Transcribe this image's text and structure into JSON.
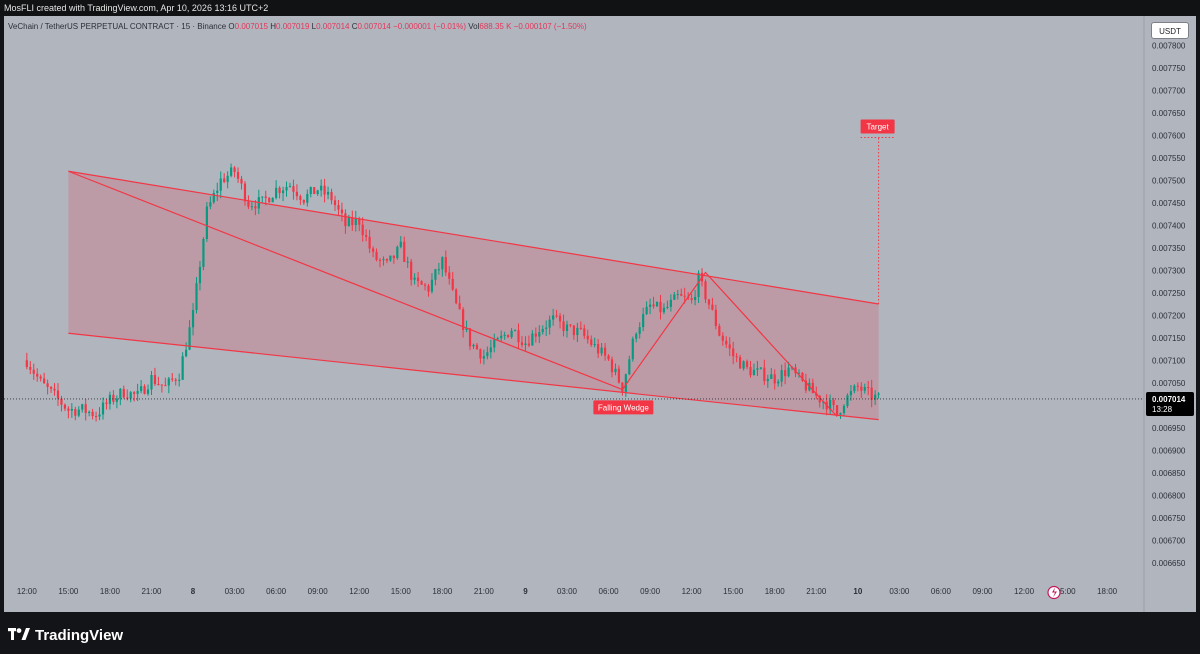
{
  "header": {
    "attribution": "MosFLI created with TradingView.com, Apr 10, 2026 13:16 UTC+2"
  },
  "legend": {
    "symbol": "VeChain / TetherUS PERPETUAL CONTRACT · 15 · Binance",
    "o_label": "O",
    "o": "0.007015",
    "h_label": "H",
    "h": "0.007019",
    "l_label": "L",
    "l": "0.007014",
    "c_label": "C",
    "c": "0.007014",
    "change": "−0.000001 (−0.01%)",
    "vol_label": "Vol",
    "vol": "688.35 K",
    "vol_change": "−0.000107 (−1.50%)"
  },
  "currency_button": "USDT",
  "footer": {
    "logo_text": "TradingView"
  },
  "colors": {
    "up": "#089981",
    "down": "#f23645",
    "pattern": "#f23645",
    "pattern_fill": "#f2364533",
    "background": "#b1b5be",
    "price_label_bg": "#000000"
  },
  "chart_data": {
    "type": "candlestick",
    "symbol": "VeChain / TetherUS PERPETUAL CONTRACT",
    "interval": "15",
    "exchange": "Binance",
    "y_ticks": [
      "0.007800",
      "0.007750",
      "0.007700",
      "0.007650",
      "0.007600",
      "0.007550",
      "0.007500",
      "0.007450",
      "0.007400",
      "0.007350",
      "0.007300",
      "0.007250",
      "0.007200",
      "0.007150",
      "0.007100",
      "0.007050",
      "0.007000",
      "0.006950",
      "0.006900",
      "0.006850",
      "0.006800",
      "0.006750",
      "0.006700",
      "0.006650"
    ],
    "ylim": [
      0.006625,
      0.007825
    ],
    "x_ticks": [
      "12:00",
      "15:00",
      "18:00",
      "21:00",
      "8",
      "03:00",
      "06:00",
      "09:00",
      "12:00",
      "15:00",
      "18:00",
      "21:00",
      "9",
      "03:00",
      "06:00",
      "09:00",
      "12:00",
      "15:00",
      "18:00",
      "21:00",
      "10",
      "03:00",
      "06:00",
      "09:00",
      "12:00",
      "15:00",
      "18:00"
    ],
    "x_range_hours": [
      -1.36,
      73.5
    ],
    "price_path": [
      [
        0,
        0.0071
      ],
      [
        1,
        0.00705
      ],
      [
        2,
        0.00702
      ],
      [
        3,
        0.00699
      ],
      [
        4,
        0.00699
      ],
      [
        5,
        0.00698
      ],
      [
        6,
        0.00701
      ],
      [
        7,
        0.00703
      ],
      [
        8,
        0.00702
      ],
      [
        9,
        0.00706
      ],
      [
        10,
        0.00704
      ],
      [
        11,
        0.00707
      ],
      [
        12,
        0.0072
      ],
      [
        13,
        0.00743
      ],
      [
        14,
        0.0075
      ],
      [
        15,
        0.00752
      ],
      [
        16,
        0.00745
      ],
      [
        17,
        0.00745
      ],
      [
        18,
        0.00748
      ],
      [
        19,
        0.00749
      ],
      [
        20,
        0.00746
      ],
      [
        21,
        0.00748
      ],
      [
        22,
        0.00746
      ],
      [
        23,
        0.0074
      ],
      [
        24,
        0.00741
      ],
      [
        25,
        0.00733
      ],
      [
        26,
        0.00731
      ],
      [
        27,
        0.00735
      ],
      [
        28,
        0.00727
      ],
      [
        29,
        0.00726
      ],
      [
        30,
        0.00732
      ],
      [
        31,
        0.00722
      ],
      [
        32,
        0.00714
      ],
      [
        33,
        0.00711
      ],
      [
        34,
        0.00714
      ],
      [
        35,
        0.00717
      ],
      [
        36,
        0.00714
      ],
      [
        37,
        0.00717
      ],
      [
        38,
        0.00719
      ],
      [
        39,
        0.00717
      ],
      [
        40,
        0.00716
      ],
      [
        41,
        0.00713
      ],
      [
        42,
        0.0071
      ],
      [
        43,
        0.00704
      ],
      [
        44,
        0.00717
      ],
      [
        45,
        0.00722
      ],
      [
        46,
        0.00721
      ],
      [
        47,
        0.00724
      ],
      [
        48,
        0.00723
      ],
      [
        48.5,
        0.00728
      ],
      [
        49.2,
        0.00723
      ],
      [
        50,
        0.00716
      ],
      [
        51,
        0.00711
      ],
      [
        52,
        0.00708
      ],
      [
        53,
        0.00707
      ],
      [
        54,
        0.00706
      ],
      [
        55,
        0.00708
      ],
      [
        56,
        0.00705
      ],
      [
        57,
        0.00702
      ],
      [
        58,
        0.007
      ],
      [
        58.5,
        0.00698
      ],
      [
        59,
        0.00701
      ],
      [
        60,
        0.00704
      ],
      [
        61,
        0.00702
      ],
      [
        61.5,
        0.007014
      ]
    ],
    "last_price": "0.007014",
    "countdown": "13:28",
    "annotations": {
      "pattern_label": "Falling Wedge",
      "target_label": "Target",
      "upper_line": [
        [
          3.0,
          0.00752
        ],
        [
          61.5,
          0.007225
        ]
      ],
      "lower_line": [
        [
          3.0,
          0.00716
        ],
        [
          61.5,
          0.006968
        ]
      ],
      "zigzag": [
        [
          3.0,
          0.00752
        ],
        [
          43.0,
          0.007035
        ],
        [
          49.0,
          0.007295
        ],
        [
          58.5,
          0.006975
        ]
      ],
      "target_price": 0.007595
    }
  }
}
